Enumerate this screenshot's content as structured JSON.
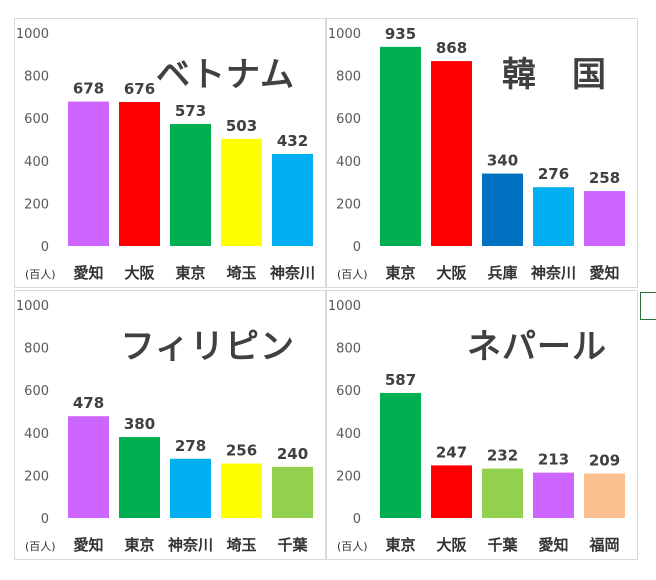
{
  "chart_data": [
    {
      "type": "bar",
      "title": "ベトナム",
      "categories": [
        "愛知",
        "大阪",
        "東京",
        "埼玉",
        "神奈川"
      ],
      "values": [
        678,
        676,
        573,
        503,
        432
      ],
      "colors": [
        "#cc66ff",
        "#ff0000",
        "#00b050",
        "#ffff00",
        "#00b0f0"
      ],
      "yticks": [
        "0",
        "200",
        "400",
        "600",
        "800",
        "1000"
      ],
      "ylim": [
        0,
        1000
      ],
      "unit": "(百人)",
      "grid": false,
      "data_labels": true
    },
    {
      "type": "bar",
      "title": "韓　国",
      "categories": [
        "東京",
        "大阪",
        "兵庫",
        "神奈川",
        "愛知"
      ],
      "values": [
        935,
        868,
        340,
        276,
        258
      ],
      "colors": [
        "#00b050",
        "#ff0000",
        "#0070c0",
        "#00b0f0",
        "#cc66ff"
      ],
      "yticks": [
        "0",
        "200",
        "400",
        "600",
        "800",
        "1000"
      ],
      "ylim": [
        0,
        1000
      ],
      "unit": "(百人)",
      "grid": false,
      "data_labels": true
    },
    {
      "type": "bar",
      "title": "フィリピン",
      "categories": [
        "愛知",
        "東京",
        "神奈川",
        "埼玉",
        "千葉"
      ],
      "values": [
        478,
        380,
        278,
        256,
        240
      ],
      "colors": [
        "#cc66ff",
        "#00b050",
        "#00b0f0",
        "#ffff00",
        "#92d050"
      ],
      "yticks": [
        "0",
        "200",
        "400",
        "600",
        "800",
        "1000"
      ],
      "ylim": [
        0,
        1000
      ],
      "unit": "(百人)",
      "grid": false,
      "data_labels": true
    },
    {
      "type": "bar",
      "title": "ネパール",
      "categories": [
        "東京",
        "大阪",
        "千葉",
        "愛知",
        "福岡"
      ],
      "values": [
        587,
        247,
        232,
        213,
        209
      ],
      "colors": [
        "#00b050",
        "#ff0000",
        "#92d050",
        "#cc66ff",
        "#fac090"
      ],
      "yticks": [
        "0",
        "200",
        "400",
        "600",
        "800",
        "1000"
      ],
      "ylim": [
        0,
        1000
      ],
      "unit": "(百人)",
      "grid": false,
      "data_labels": true
    }
  ]
}
